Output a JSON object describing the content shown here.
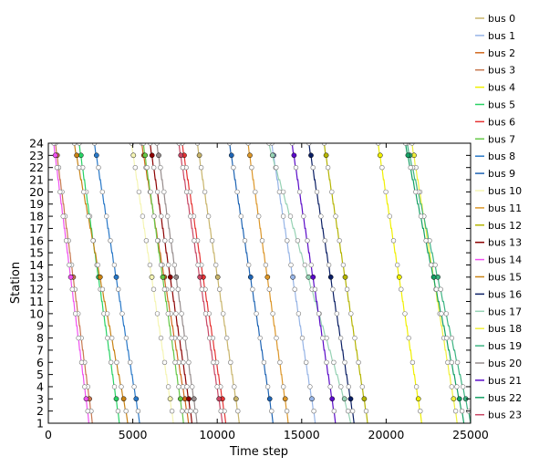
{
  "chart_data": {
    "type": "line",
    "title": "",
    "xlabel": "Time step",
    "ylabel": "Station",
    "xlim": [
      0,
      25000
    ],
    "ylim": [
      1,
      24
    ],
    "x_ticks": [
      0,
      5000,
      10000,
      15000,
      20000,
      25000
    ],
    "y_ticks": [
      1,
      2,
      3,
      4,
      5,
      6,
      7,
      8,
      9,
      10,
      11,
      12,
      13,
      14,
      15,
      16,
      17,
      18,
      19,
      20,
      21,
      22,
      23,
      24
    ],
    "grid": false,
    "legend_position": "right",
    "series": [
      {
        "name": "bus  0",
        "color": "#c8b46a",
        "x": [
          8800,
          11300
        ],
        "y": [
          24,
          1
        ]
      },
      {
        "name": "bus  1",
        "color": "#96b4e6",
        "x": [
          13200,
          15800
        ],
        "y": [
          24,
          1
        ]
      },
      {
        "name": "bus  2",
        "color": "#d2691e",
        "x": [
          5500,
          8300
        ],
        "y": [
          24,
          1
        ]
      },
      {
        "name": "bus  3",
        "color": "#c87850",
        "x": [
          400,
          2600
        ],
        "y": [
          24,
          1
        ]
      },
      {
        "name": "bus  4",
        "color": "#f0f000",
        "x": [
          19500,
          22100
        ],
        "y": [
          24,
          1
        ]
      },
      {
        "name": "bus  5",
        "color": "#28d264",
        "x": [
          1800,
          4200
        ],
        "y": [
          24,
          1
        ]
      },
      {
        "name": "bus  6",
        "color": "#e63232",
        "x": [
          7900,
          10500
        ],
        "y": [
          24,
          1
        ]
      },
      {
        "name": "bus  7",
        "color": "#64c846",
        "x": [
          5600,
          8000
        ],
        "y": [
          24,
          1
        ]
      },
      {
        "name": "bus  8",
        "color": "#2878c8",
        "x": [
          2700,
          5400
        ],
        "y": [
          24,
          1
        ]
      },
      {
        "name": "bus  9",
        "color": "#1e64b4",
        "x": [
          10700,
          13300
        ],
        "y": [
          24,
          1
        ]
      },
      {
        "name": "bus  10",
        "color": "#f5f5b4",
        "x": [
          4900,
          7400
        ],
        "y": [
          24,
          1
        ]
      },
      {
        "name": "bus  11",
        "color": "#dc9628",
        "x": [
          11800,
          14200
        ],
        "y": [
          24,
          1
        ]
      },
      {
        "name": "bus  12",
        "color": "#b4b400",
        "x": [
          16300,
          18900
        ],
        "y": [
          24,
          1
        ]
      },
      {
        "name": "bus  13",
        "color": "#8c0000",
        "x": [
          6000,
          8500
        ],
        "y": [
          24,
          1
        ]
      },
      {
        "name": "bus  14",
        "color": "#f050f0",
        "x": [
          300,
          2400
        ],
        "y": [
          24,
          1
        ]
      },
      {
        "name": "bus  15",
        "color": "#c88214",
        "x": [
          1500,
          4700
        ],
        "y": [
          24,
          1
        ]
      },
      {
        "name": "bus  16",
        "color": "#0a1e64",
        "x": [
          15400,
          18100
        ],
        "y": [
          24,
          1
        ]
      },
      {
        "name": "bus  17",
        "color": "#96d2b4",
        "x": [
          13000,
          17900
        ],
        "y": [
          24,
          1
        ]
      },
      {
        "name": "bus  18",
        "color": "#f0f03c",
        "x": [
          21500,
          24200
        ],
        "y": [
          24,
          1
        ]
      },
      {
        "name": "bus  19",
        "color": "#3cb482",
        "x": [
          21200,
          25000
        ],
        "y": [
          24,
          1
        ]
      },
      {
        "name": "bus  20",
        "color": "#968c8c",
        "x": [
          6400,
          8800
        ],
        "y": [
          24,
          1
        ]
      },
      {
        "name": "bus  21",
        "color": "#5a0ac8",
        "x": [
          14400,
          17000
        ],
        "y": [
          24,
          1
        ]
      },
      {
        "name": "bus  22",
        "color": "#14a064",
        "x": [
          21100,
          24600
        ],
        "y": [
          24,
          1
        ]
      },
      {
        "name": "bus  23",
        "color": "#c84664",
        "x": [
          7700,
          10300
        ],
        "y": [
          24,
          1
        ]
      }
    ]
  }
}
